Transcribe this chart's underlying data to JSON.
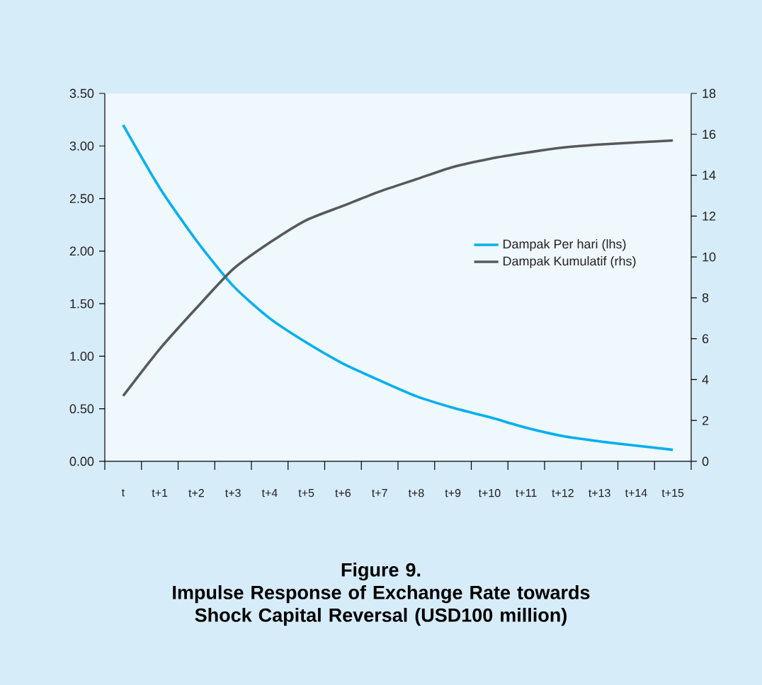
{
  "chart_data": {
    "type": "line",
    "title": "Figure 9.",
    "subtitle": "Impulse Response of Exchange Rate towards Shock Capital Reversal (USD100 million)",
    "categories": [
      "t",
      "t+1",
      "t+2",
      "t+3",
      "t+4",
      "t+5",
      "t+6",
      "t+7",
      "t+8",
      "t+9",
      "t+10",
      "t+11",
      "t+12",
      "t+13",
      "t+14",
      "t+15"
    ],
    "series": [
      {
        "name": "Dampak Per hari (lhs)",
        "color": "#00aeef",
        "values": [
          3.2,
          2.6,
          2.1,
          1.67,
          1.36,
          1.13,
          0.93,
          0.77,
          0.62,
          0.51,
          0.42,
          0.32,
          0.24,
          0.19,
          0.15,
          0.11
        ]
      },
      {
        "name": "Dampak Kumulatif (rhs)",
        "color": "#58595b",
        "axis": "y2",
        "values": [
          3.2,
          5.5,
          7.5,
          9.4,
          10.7,
          11.8,
          12.5,
          13.2,
          13.8,
          14.4,
          14.8,
          15.1,
          15.35,
          15.5,
          15.6,
          15.7
        ]
      }
    ],
    "ylim": [
      0,
      3.5
    ],
    "yticks": [
      {
        "value": 0,
        "label": "0.00"
      },
      {
        "value": 0.5,
        "label": "0.50"
      },
      {
        "value": 1,
        "label": "1.00"
      },
      {
        "value": 1.5,
        "label": "1.50"
      },
      {
        "value": 2,
        "label": "2.00"
      },
      {
        "value": 2.5,
        "label": "2.50"
      },
      {
        "value": 3,
        "label": "3.00"
      },
      {
        "value": 3.5,
        "label": "3.50"
      }
    ],
    "y2lim": [
      0,
      18
    ],
    "y2ticks": [
      0,
      2,
      4,
      6,
      8,
      10,
      12,
      14,
      16,
      18
    ],
    "legend": "right",
    "grid": false,
    "marker": "none",
    "line_style": "solid"
  }
}
